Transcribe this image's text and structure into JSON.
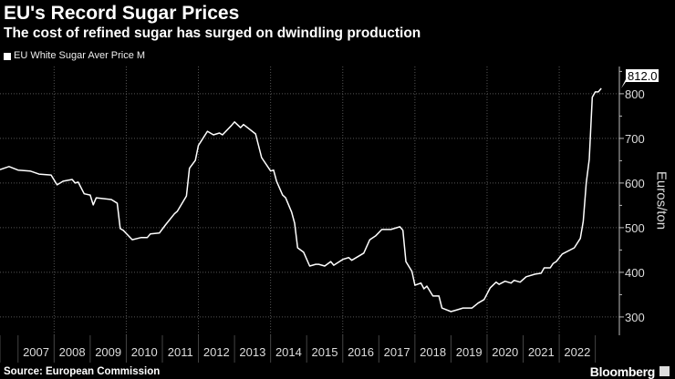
{
  "header": {
    "title": "EU's Record Sugar Prices",
    "subtitle": "The cost of refined sugar has surged on dwindling production"
  },
  "footer": {
    "source": "Source: European Commission",
    "brand": "Bloomberg"
  },
  "colors": {
    "background": "#000000",
    "line": "#ffffff",
    "grid": "#555555",
    "axis": "#bbbbbb"
  },
  "chart_data": {
    "type": "line",
    "title": "EU's Record Sugar Prices",
    "subtitle": "The cost of refined sugar has surged on dwindling production",
    "ylabel": "Euros/ton",
    "y_axis_side": "right",
    "ylim": [
      259,
      861
    ],
    "xlim": [
      "2006-07",
      "2023-09"
    ],
    "yticks": [
      "300",
      "400",
      "500",
      "600",
      "700",
      "800"
    ],
    "xticks": [
      "2007",
      "2008",
      "2009",
      "2010",
      "2011",
      "2012",
      "2013",
      "2014",
      "2015",
      "2016",
      "2017",
      "2018",
      "2019",
      "2020",
      "2021",
      "2022"
    ],
    "grid": true,
    "legend_placement": "top-left",
    "last_value_label": "812.0",
    "series": [
      {
        "name": "EU White Sugar Aver Price M",
        "color": "#ffffff",
        "points": [
          [
            "2006-07",
            630
          ],
          [
            "2006-10",
            637
          ],
          [
            "2007-01",
            629
          ],
          [
            "2007-05",
            627
          ],
          [
            "2007-08",
            620
          ],
          [
            "2007-12",
            618
          ],
          [
            "2008-02",
            596
          ],
          [
            "2008-04",
            604
          ],
          [
            "2008-07",
            608
          ],
          [
            "2008-08",
            600
          ],
          [
            "2008-09",
            602
          ],
          [
            "2008-11",
            576
          ],
          [
            "2009-01",
            573
          ],
          [
            "2009-02",
            551
          ],
          [
            "2009-03",
            567
          ],
          [
            "2009-08",
            563
          ],
          [
            "2009-10",
            555
          ],
          [
            "2009-11",
            498
          ],
          [
            "2009-12",
            494
          ],
          [
            "2010-03",
            473
          ],
          [
            "2010-06",
            478
          ],
          [
            "2010-08",
            478
          ],
          [
            "2010-09",
            486
          ],
          [
            "2010-12",
            488
          ],
          [
            "2011-02",
            506
          ],
          [
            "2011-05",
            531
          ],
          [
            "2011-06",
            537
          ],
          [
            "2011-09",
            571
          ],
          [
            "2011-10",
            633
          ],
          [
            "2011-12",
            651
          ],
          [
            "2012-01",
            684
          ],
          [
            "2012-04",
            716
          ],
          [
            "2012-06",
            708
          ],
          [
            "2012-08",
            712
          ],
          [
            "2012-09",
            708
          ],
          [
            "2012-12",
            729
          ],
          [
            "2013-01",
            737
          ],
          [
            "2013-03",
            724
          ],
          [
            "2013-04",
            731
          ],
          [
            "2013-08",
            710
          ],
          [
            "2013-10",
            657
          ],
          [
            "2014-01",
            627
          ],
          [
            "2014-02",
            629
          ],
          [
            "2014-03",
            604
          ],
          [
            "2014-05",
            573
          ],
          [
            "2014-06",
            567
          ],
          [
            "2014-08",
            535
          ],
          [
            "2014-09",
            510
          ],
          [
            "2014-10",
            455
          ],
          [
            "2014-12",
            445
          ],
          [
            "2015-02",
            414
          ],
          [
            "2015-04",
            418
          ],
          [
            "2015-05",
            418
          ],
          [
            "2015-07",
            414
          ],
          [
            "2015-09",
            424
          ],
          [
            "2015-10",
            416
          ],
          [
            "2016-01",
            429
          ],
          [
            "2016-03",
            433
          ],
          [
            "2016-04",
            427
          ],
          [
            "2016-07",
            439
          ],
          [
            "2016-08",
            443
          ],
          [
            "2016-10",
            473
          ],
          [
            "2016-12",
            482
          ],
          [
            "2017-02",
            496
          ],
          [
            "2017-05",
            496
          ],
          [
            "2017-08",
            502
          ],
          [
            "2017-09",
            494
          ],
          [
            "2017-10",
            424
          ],
          [
            "2017-12",
            402
          ],
          [
            "2018-01",
            371
          ],
          [
            "2018-03",
            376
          ],
          [
            "2018-04",
            363
          ],
          [
            "2018-05",
            369
          ],
          [
            "2018-07",
            347
          ],
          [
            "2018-09",
            347
          ],
          [
            "2018-10",
            320
          ],
          [
            "2019-01",
            312
          ],
          [
            "2019-03",
            316
          ],
          [
            "2019-05",
            320
          ],
          [
            "2019-08",
            320
          ],
          [
            "2019-10",
            331
          ],
          [
            "2019-12",
            339
          ],
          [
            "2020-02",
            365
          ],
          [
            "2020-04",
            378
          ],
          [
            "2020-05",
            373
          ],
          [
            "2020-07",
            380
          ],
          [
            "2020-09",
            376
          ],
          [
            "2020-10",
            382
          ],
          [
            "2020-12",
            378
          ],
          [
            "2021-02",
            390
          ],
          [
            "2021-05",
            396
          ],
          [
            "2021-07",
            398
          ],
          [
            "2021-08",
            410
          ],
          [
            "2021-10",
            410
          ],
          [
            "2021-11",
            420
          ],
          [
            "2021-12",
            424
          ],
          [
            "2022-02",
            441
          ],
          [
            "2022-06",
            455
          ],
          [
            "2022-08",
            476
          ],
          [
            "2022-09",
            514
          ],
          [
            "2022-10",
            600
          ],
          [
            "2022-11",
            653
          ],
          [
            "2022-12",
            792
          ],
          [
            "2023-01",
            804
          ],
          [
            "2023-02",
            804
          ],
          [
            "2023-03",
            812
          ]
        ]
      }
    ]
  }
}
